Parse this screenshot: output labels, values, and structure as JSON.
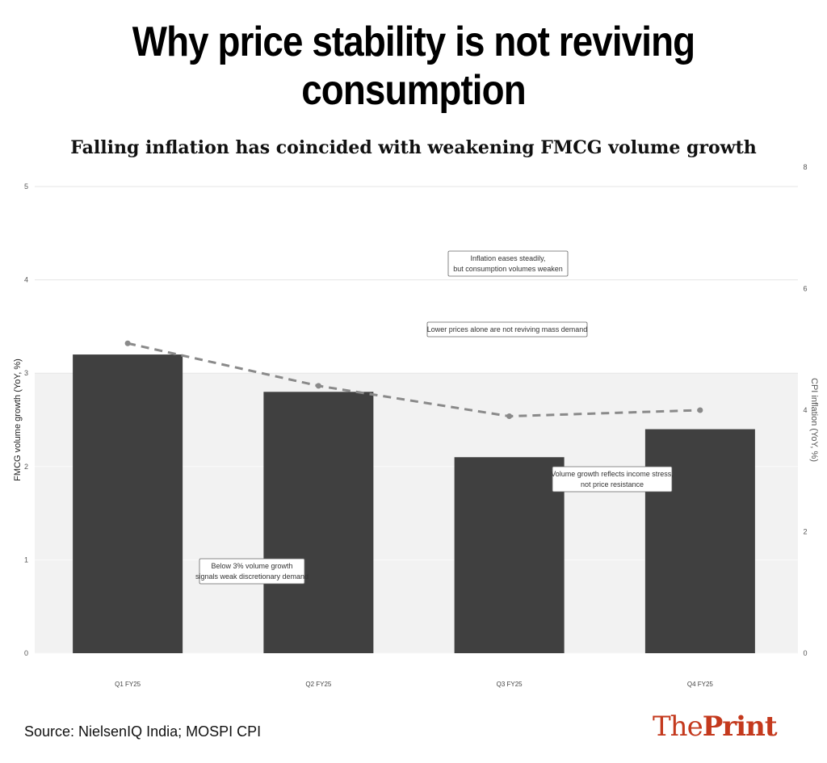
{
  "title": "Why price stability is not reviving consumption",
  "subtitle": "Falling inflation has coincided with weakening FMCG volume growth",
  "source": "Source: NielsenIQ India; MOSPI CPI",
  "logo": "ThePrint",
  "colors": {
    "bar": "#404040",
    "line": "#8a8a8a",
    "shade": "#f2f2f2",
    "logo": "#c4391d"
  },
  "chart_data": {
    "type": "bar",
    "categories": [
      "Q1 FY25",
      "Q2 FY25",
      "Q3 FY25",
      "Q4 FY25"
    ],
    "series": [
      {
        "name": "FMCG volume growth (YoY, %)",
        "type": "bar",
        "axis": "left",
        "values": [
          3.2,
          2.8,
          2.1,
          2.4
        ]
      },
      {
        "name": "CPI inflation (YoY, %)",
        "type": "line",
        "style": "dashed",
        "axis": "right",
        "values": [
          5.1,
          4.4,
          3.9,
          4.0
        ]
      }
    ],
    "ylabel": "FMCG volume growth (YoY, %)",
    "y2label": "CPI inflation (YoY, %)",
    "ylim": [
      0,
      5
    ],
    "y2lim": [
      0,
      8
    ],
    "yticks": [
      "0",
      "1",
      "2",
      "3",
      "4",
      "5"
    ],
    "y2ticks": [
      "0",
      "2",
      "4",
      "6",
      "8"
    ],
    "shaded_band": {
      "from": 0,
      "to": 3
    },
    "grid": true,
    "annotations": [
      {
        "text": [
          "Inflation eases steadily,",
          "but consumption volumes weaken"
        ]
      },
      {
        "text": [
          "Lower prices alone are not reviving mass demand"
        ]
      },
      {
        "text": [
          "Volume growth reflects income stress,",
          "not price resistance"
        ]
      },
      {
        "text": [
          "Below 3% volume growth",
          "signals weak discretionary demand"
        ]
      }
    ]
  }
}
